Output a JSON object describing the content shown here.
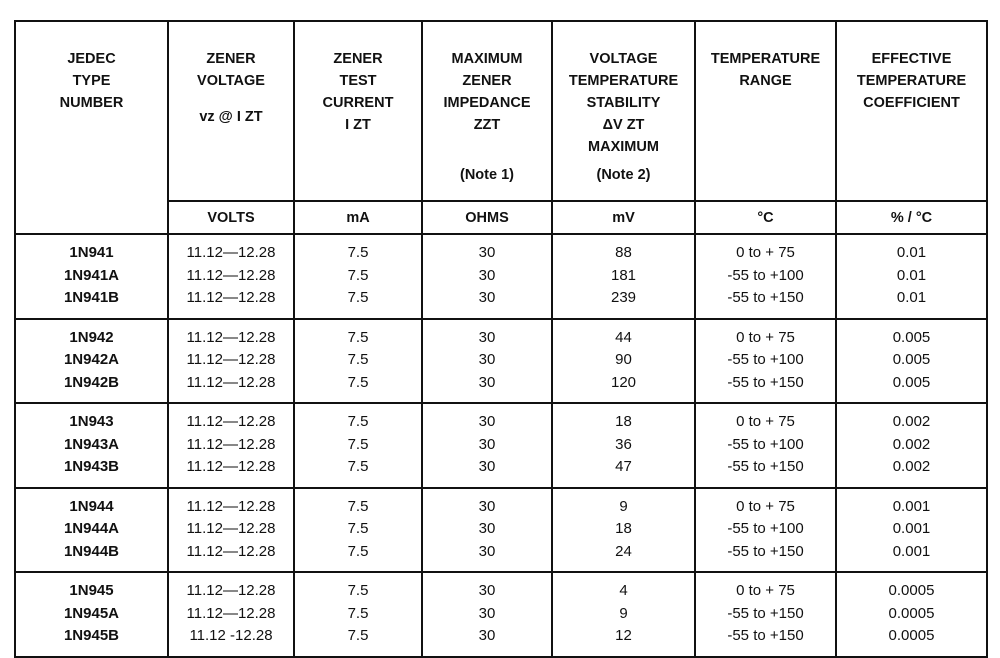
{
  "headers": [
    {
      "lines": [
        "JEDEC",
        "TYPE",
        "NUMBER"
      ],
      "unit": ""
    },
    {
      "lines": [
        "ZENER",
        "VOLTAGE"
      ],
      "symbol": "vz @ I ZT",
      "unit": "VOLTS"
    },
    {
      "lines": [
        "ZENER",
        "TEST",
        "CURRENT"
      ],
      "symbol": "I ZT",
      "unit": "mA"
    },
    {
      "lines": [
        "MAXIMUM",
        "ZENER",
        "IMPEDANCE",
        "ZZT"
      ],
      "note": "(Note 1)",
      "unit": "OHMS"
    },
    {
      "lines": [
        "VOLTAGE",
        "TEMPERATURE",
        "STABILITY"
      ],
      "symbol": "ΔV ZT",
      "lines2": "MAXIMUM",
      "note": "(Note 2)",
      "unit": "mV"
    },
    {
      "lines": [
        "TEMPERATURE",
        "RANGE"
      ],
      "unit": "°C"
    },
    {
      "lines": [
        "EFFECTIVE",
        "TEMPERATURE",
        "COEFFICIENT"
      ],
      "unit": "% / °C"
    }
  ],
  "groups": [
    [
      [
        "1N941",
        "11.12—12.28",
        "7.5",
        "30",
        "88",
        "0 to + 75",
        "0.01"
      ],
      [
        "1N941A",
        "11.12—12.28",
        "7.5",
        "30",
        "181",
        "-55 to +100",
        "0.01"
      ],
      [
        "1N941B",
        "11.12—12.28",
        "7.5",
        "30",
        "239",
        "-55 to +150",
        "0.01"
      ]
    ],
    [
      [
        "1N942",
        "11.12—12.28",
        "7.5",
        "30",
        "44",
        "0 to + 75",
        "0.005"
      ],
      [
        "1N942A",
        "11.12—12.28",
        "7.5",
        "30",
        "90",
        "-55 to +100",
        "0.005"
      ],
      [
        "1N942B",
        "11.12—12.28",
        "7.5",
        "30",
        "120",
        "-55 to +150",
        "0.005"
      ]
    ],
    [
      [
        "1N943",
        "11.12—12.28",
        "7.5",
        "30",
        "18",
        "0 to + 75",
        "0.002"
      ],
      [
        "1N943A",
        "11.12—12.28",
        "7.5",
        "30",
        "36",
        "-55 to +100",
        "0.002"
      ],
      [
        "1N943B",
        "11.12—12.28",
        "7.5",
        "30",
        "47",
        "-55 to +150",
        "0.002"
      ]
    ],
    [
      [
        "1N944",
        "11.12—12.28",
        "7.5",
        "30",
        "9",
        "0 to + 75",
        "0.001"
      ],
      [
        "1N944A",
        "11.12—12.28",
        "7.5",
        "30",
        "18",
        "-55 to +100",
        "0.001"
      ],
      [
        "1N944B",
        "11.12—12.28",
        "7.5",
        "30",
        "24",
        "-55 to +150",
        "0.001"
      ]
    ],
    [
      [
        "1N945",
        "11.12—12.28",
        "7.5",
        "30",
        "4",
        "0 to + 75",
        "0.0005"
      ],
      [
        "1N945A",
        "11.12—12.28",
        "7.5",
        "30",
        "9",
        "-55 to +150",
        "0.0005"
      ],
      [
        "1N945B",
        "11.12 -12.28",
        "7.5",
        "30",
        "12",
        "-55 to +150",
        "0.0005"
      ]
    ]
  ]
}
